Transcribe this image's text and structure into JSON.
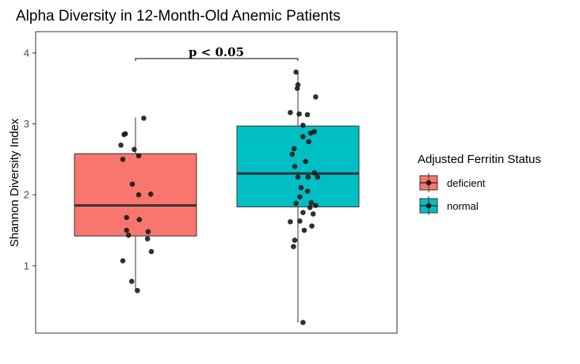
{
  "chart_data": {
    "type": "box",
    "title": "Alpha Diversity in 12-Month-Old Anemic Patients",
    "xlabel": "",
    "ylabel": "Shannon Diversity Index",
    "ylim": [
      0.05,
      4.3
    ],
    "yticks": [
      "1",
      "2",
      "3",
      "4"
    ],
    "grid": false,
    "legend": {
      "title": "Adjusted Ferritin Status",
      "position": "right"
    },
    "annotation": {
      "text": "p < 0.05"
    },
    "series": [
      {
        "name": "deficient",
        "color": "#F8766D",
        "box": {
          "min": 0.65,
          "q1": 1.42,
          "median": 1.85,
          "q3": 2.58,
          "max": 3.09
        },
        "points": [
          [
            -0.23,
            2.7
          ],
          [
            -0.18,
            2.85
          ],
          [
            -0.16,
            2.86
          ],
          [
            -0.2,
            2.5
          ],
          [
            -0.02,
            2.64
          ],
          [
            0.13,
            3.08
          ],
          [
            0.05,
            2.55
          ],
          [
            -0.05,
            2.15
          ],
          [
            0.05,
            2.0
          ],
          [
            0.24,
            2.01
          ],
          [
            -0.14,
            1.68
          ],
          [
            0.06,
            1.65
          ],
          [
            -0.14,
            1.5
          ],
          [
            -0.11,
            1.43
          ],
          [
            0.2,
            1.48
          ],
          [
            0.19,
            1.38
          ],
          [
            0.25,
            1.2
          ],
          [
            -0.2,
            1.07
          ],
          [
            -0.06,
            0.78
          ],
          [
            0.03,
            0.65
          ]
        ]
      },
      {
        "name": "normal",
        "color": "#00BFC4",
        "box": {
          "min": 0.2,
          "q1": 1.83,
          "median": 2.3,
          "q3": 2.97,
          "max": 3.73
        },
        "points": [
          [
            -0.03,
            3.73
          ],
          [
            0.0,
            3.55
          ],
          [
            -0.01,
            3.5
          ],
          [
            0.28,
            3.38
          ],
          [
            -0.12,
            3.16
          ],
          [
            0.02,
            3.14
          ],
          [
            0.15,
            3.13
          ],
          [
            0.08,
            2.98
          ],
          [
            0.2,
            2.87
          ],
          [
            0.26,
            2.89
          ],
          [
            0.08,
            2.82
          ],
          [
            0.17,
            2.75
          ],
          [
            -0.06,
            2.65
          ],
          [
            0.12,
            2.47
          ],
          [
            -0.09,
            2.57
          ],
          [
            -0.05,
            2.4
          ],
          [
            0.16,
            2.25
          ],
          [
            0.26,
            2.31
          ],
          [
            0.31,
            2.25
          ],
          [
            0.0,
            2.25
          ],
          [
            0.15,
            2.05
          ],
          [
            0.05,
            2.1
          ],
          [
            0.03,
            1.97
          ],
          [
            0.21,
            1.89
          ],
          [
            0.19,
            1.82
          ],
          [
            -0.03,
            1.88
          ],
          [
            0.08,
            1.75
          ],
          [
            0.28,
            1.85
          ],
          [
            0.24,
            1.73
          ],
          [
            -0.12,
            1.62
          ],
          [
            0.22,
            1.56
          ],
          [
            0.03,
            1.63
          ],
          [
            0.1,
            1.5
          ],
          [
            -0.05,
            1.36
          ],
          [
            -0.07,
            1.27
          ],
          [
            0.08,
            0.2
          ]
        ]
      }
    ]
  }
}
